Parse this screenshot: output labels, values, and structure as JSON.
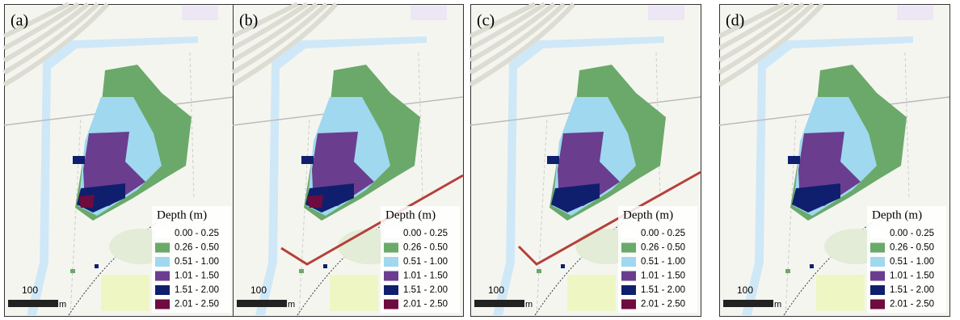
{
  "panels": [
    {
      "label": "(a)"
    },
    {
      "label": "(b)"
    },
    {
      "label": "(c)"
    },
    {
      "label": "(d)"
    }
  ],
  "legend": {
    "title": "Depth (m)",
    "items": [
      {
        "label": "0.00 - 0.25",
        "color": "#ffffff"
      },
      {
        "label": "0.26 - 0.50",
        "color": "#6aa96a"
      },
      {
        "label": "0.51 - 1.00",
        "color": "#9fd8ef"
      },
      {
        "label": "1.01 - 1.50",
        "color": "#6a3d8f"
      },
      {
        "label": "1.51 - 2.00",
        "color": "#0f1f6e"
      },
      {
        "label": "2.01 - 2.50",
        "color": "#6e0b3f"
      }
    ]
  },
  "scale_bar": {
    "length": "100",
    "unit": "m"
  }
}
